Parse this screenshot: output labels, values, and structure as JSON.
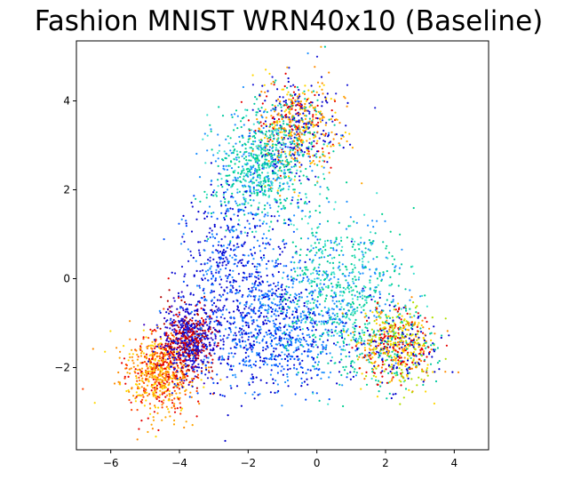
{
  "chart_data": {
    "type": "scatter",
    "title": "Fashion MNIST WRN40x10 (Baseline)",
    "xlabel": "",
    "ylabel": "",
    "xlim": [
      -7.0,
      5.0
    ],
    "ylim": [
      -3.85,
      5.35
    ],
    "xticks": [
      -6,
      -4,
      -2,
      0,
      2,
      4
    ],
    "yticks": [
      -2,
      0,
      2,
      4
    ],
    "grid": false,
    "legend": "none",
    "colormap": "jet",
    "clusters": [
      {
        "label": "class group (orange/red)",
        "center": [
          -4.6,
          -2.1
        ],
        "spread": [
          0.55,
          0.45
        ],
        "colors": [
          "#ffd700",
          "#ffa500",
          "#ff8c00",
          "#ff4500",
          "#e60000"
        ]
      },
      {
        "label": "class group (dark red/blue)",
        "center": [
          -3.7,
          -1.4
        ],
        "spread": [
          0.4,
          0.4
        ],
        "colors": [
          "#b30000",
          "#e60000",
          "#1c1cd8",
          "#0000cd",
          "#3a00c0"
        ]
      },
      {
        "label": "class group (top mixed)",
        "center": [
          -0.6,
          3.4
        ],
        "spread": [
          0.6,
          0.55
        ],
        "colors": [
          "#0000cd",
          "#1c1cd8",
          "#ff8c00",
          "#ffa500",
          "#e60000",
          "#00c8a0",
          "#ffd700"
        ]
      },
      {
        "label": "class group (teal upper)",
        "center": [
          -1.6,
          2.5
        ],
        "spread": [
          0.7,
          0.6
        ],
        "colors": [
          "#00c8a0",
          "#00d090",
          "#1e90ff",
          "#40e0d0"
        ]
      },
      {
        "label": "class group (blue left)",
        "center": [
          -2.4,
          0.0
        ],
        "spread": [
          0.8,
          1.1
        ],
        "colors": [
          "#0000cd",
          "#1c1cd8",
          "#0050ff",
          "#1e90ff"
        ]
      },
      {
        "label": "class group (blue lower)",
        "center": [
          -1.0,
          -1.2
        ],
        "spread": [
          1.0,
          0.7
        ],
        "colors": [
          "#0000cd",
          "#1e90ff",
          "#0050ff"
        ]
      },
      {
        "label": "class group (teal center)",
        "center": [
          0.7,
          -0.3
        ],
        "spread": [
          0.9,
          0.9
        ],
        "colors": [
          "#00c8a0",
          "#00d090",
          "#40e0d0",
          "#1e90ff"
        ]
      },
      {
        "label": "class group (right mixed)",
        "center": [
          2.3,
          -1.5
        ],
        "spread": [
          0.6,
          0.45
        ],
        "colors": [
          "#0000cd",
          "#e60000",
          "#ff8c00",
          "#ffd700",
          "#00c8a0",
          "#b0e000"
        ]
      }
    ]
  }
}
